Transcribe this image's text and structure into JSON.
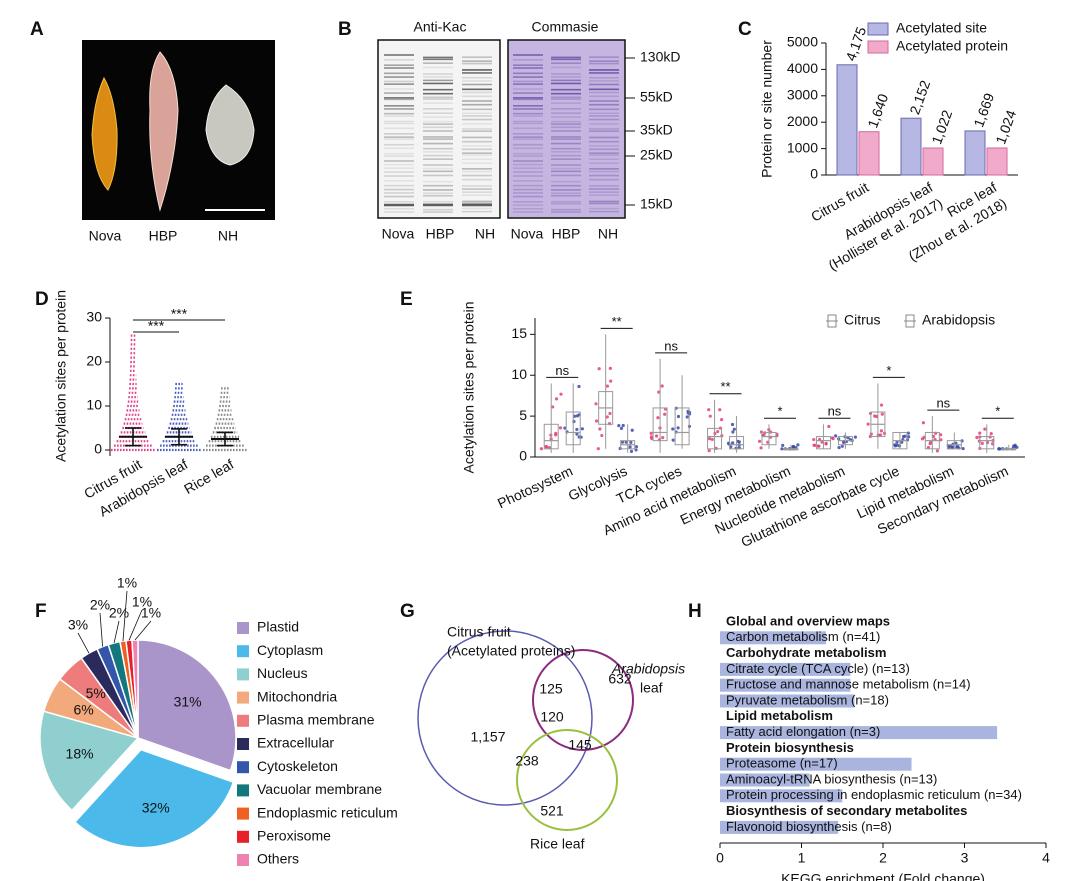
{
  "panel_labels": [
    "A",
    "B",
    "C",
    "D",
    "E",
    "F",
    "G",
    "H"
  ],
  "photo": {
    "labels": [
      "Nova",
      "HBP",
      "NH"
    ]
  },
  "blot": {
    "titles": [
      "Anti-Kac",
      "Commasie"
    ],
    "lanes": [
      "Nova",
      "HBP",
      "NH"
    ],
    "markers": [
      "130kD",
      "55kD",
      "35kD",
      "25kD",
      "15kD"
    ]
  },
  "venn": {
    "sets": [
      {
        "name": "Citrus fruit",
        "note": "(Acetylated proteins)"
      },
      {
        "name": "Arabidopsis",
        "note": "leaf"
      },
      {
        "name": "Rice leaf"
      }
    ],
    "regions": {
      "citrus_only": "1,157",
      "arabidopsis_only": "632",
      "rice_only": "521",
      "citrus_arabidopsis": "125",
      "citrus_rice": "238",
      "arabidopsis_rice": "145",
      "all": "120"
    }
  },
  "chart_data": [
    {
      "type": "bar",
      "ylabel": "Protein or site number",
      "categories": [
        "Citrus fruit",
        "Arabidopsis leaf",
        "Rice leaf"
      ],
      "references": [
        "(Hollister et al. 2017)",
        "(Zhou et al. 2018)"
      ],
      "series": [
        {
          "name": "Acetylated site",
          "color": "#b7b7e3",
          "edge": "#6a6ab4",
          "values": [
            4175,
            2152,
            1669
          ],
          "value_labels": [
            "4,175",
            "2,152",
            "1,669"
          ]
        },
        {
          "name": "Acetylated protein",
          "color": "#f2aacb",
          "edge": "#cf6a9c",
          "values": [
            1640,
            1022,
            1024
          ],
          "value_labels": [
            "1,640",
            "1,022",
            "1,024"
          ]
        }
      ],
      "ylim": [
        0,
        5000
      ],
      "yticks": [
        0,
        1000,
        2000,
        3000,
        4000,
        5000
      ]
    },
    {
      "type": "strip",
      "ylabel": "Acetylation sites per protein",
      "categories": [
        "Citrus fruit",
        "Arabidopsis leaf",
        "Rice leaf"
      ],
      "colors": [
        "#e2408c",
        "#4a5bbb",
        "#8a8a8a"
      ],
      "values": [
        3,
        3,
        2.5
      ],
      "errors": [
        2,
        1.8,
        1.5
      ],
      "pairs": [
        {
          "label": "***",
          "from": 0,
          "to": 1
        },
        {
          "label": "***",
          "from": 0,
          "to": 2
        }
      ],
      "ylim": [
        0,
        30
      ],
      "yticks": [
        0,
        10,
        20,
        30
      ]
    },
    {
      "type": "box",
      "ylabel": "Acetylation sites per protein",
      "categories": [
        "Photosystem",
        "Glycolysis",
        "TCA cycles",
        "Amino acid metabolism",
        "Energy metabolism",
        "Nucleotide metabolism",
        "Glutathione ascorbate cycle",
        "Lipid metabolism",
        "Secondary metabolism"
      ],
      "significance": [
        "ns",
        "**",
        "ns",
        "**",
        "*",
        "ns",
        "*",
        "ns",
        "*"
      ],
      "series": [
        {
          "name": "Citrus",
          "color": "#e2407c",
          "low": [
            0.5,
            1,
            0.5,
            0.5,
            1,
            1,
            1,
            0.5,
            0.5
          ],
          "q1": [
            1,
            4,
            2,
            1,
            1.5,
            1,
            2.5,
            1,
            1
          ],
          "median": [
            2,
            6,
            3,
            2.5,
            2.5,
            2,
            4,
            2,
            2
          ],
          "q3": [
            4,
            8,
            6,
            3.5,
            3,
            2.5,
            5.5,
            3,
            2.5
          ],
          "high": [
            9,
            15,
            12,
            7,
            4,
            4,
            9,
            5,
            4
          ]
        },
        {
          "name": "Arabidopsis",
          "color": "#3a4aa8",
          "low": [
            0.5,
            0.5,
            1,
            0.5,
            1,
            1,
            1,
            1,
            1
          ],
          "q1": [
            1.5,
            1,
            1.5,
            1,
            1,
            1.5,
            1,
            1,
            1
          ],
          "median": [
            3,
            1.5,
            3,
            1.5,
            1,
            2,
            2,
            1.5,
            1
          ],
          "q3": [
            5.5,
            2,
            6,
            2.5,
            1,
            2.5,
            3,
            2,
            1
          ],
          "high": [
            9,
            4,
            10,
            5,
            1.5,
            3,
            3,
            3,
            1.5
          ]
        }
      ],
      "ylim": [
        0,
        17
      ],
      "yticks": [
        0,
        5,
        10,
        15
      ]
    },
    {
      "type": "pie",
      "categories": [
        "Plastid",
        "Cytoplasm",
        "Nucleus",
        "Mitochondria",
        "Plasma membrane",
        "Extracellular",
        "Cytoskeleton",
        "Vacuolar membrane",
        "Endoplasmic reticulum",
        "Peroxisome",
        "Others"
      ],
      "values": [
        31,
        32,
        18,
        6,
        5,
        3,
        2,
        2,
        1,
        1,
        1
      ],
      "value_labels": [
        "31%",
        "32%",
        "18%",
        "6%",
        "5%",
        "3%",
        "2%",
        "2%",
        "1%",
        "1%",
        "1%"
      ],
      "colors": [
        "#a995c9",
        "#4bb9ea",
        "#8fcfcf",
        "#f2aa7c",
        "#ee7c7c",
        "#2b2a5c",
        "#3356aa",
        "#12787b",
        "#f06020",
        "#e8202a",
        "#f082b2"
      ],
      "exploded": "Cytoplasm"
    },
    {
      "type": "barh",
      "xlabel": "KEGG enrichment (Fold change)",
      "color": "#a9b5de",
      "groups": [
        {
          "name": "Global and overview maps",
          "categories": [
            "Carbon metabolism (n=41)"
          ],
          "values": [
            1.3
          ]
        },
        {
          "name": "Carbohydrate metabolism",
          "categories": [
            "Citrate cycle (TCA cycle) (n=13)",
            "Fructose and mannose metabolism (n=14)",
            "Pyruvate metabolism (n=18)"
          ],
          "values": [
            1.6,
            1.6,
            1.65
          ]
        },
        {
          "name": "Lipid metabolism",
          "categories": [
            "Fatty acid elongation (n=3)"
          ],
          "values": [
            3.4
          ]
        },
        {
          "name": "Protein biosynthesis",
          "categories": [
            "Proteasome (n=17)",
            "Aminoacyl-tRNA biosynthesis (n=13)",
            "Protein processing in endoplasmic reticulum (n=34)"
          ],
          "values": [
            2.35,
            1.1,
            1.5
          ]
        },
        {
          "name": "Biosynthesis of secondary metabolites",
          "categories": [
            "Flavonoid biosynthesis (n=8)"
          ],
          "values": [
            1.45
          ]
        }
      ],
      "xlim": [
        0,
        4
      ],
      "xticks": [
        0,
        1,
        2,
        3,
        4
      ]
    }
  ]
}
